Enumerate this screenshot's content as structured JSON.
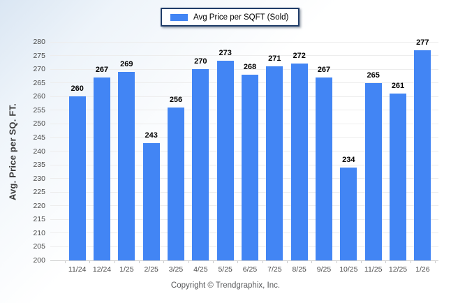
{
  "legend": {
    "label": "Avg Price per SQFT (Sold)",
    "swatch_icon": "blue-square-swatch"
  },
  "y_axis_title": "Avg. Price per SQ. FT.",
  "footer": {
    "copyright": "Copyright © Trendgraphix, Inc."
  },
  "colors": {
    "bar": "#4285f4",
    "legend_border": "#1f3c68",
    "gridline": "#ededed",
    "axis_line": "#cccccc",
    "tick_text": "#4a4a4a",
    "background_tint": "#dae6f3"
  },
  "chart_data": {
    "type": "bar",
    "title": "",
    "xlabel": "",
    "ylabel": "Avg. Price per SQ. FT.",
    "categories": [
      "11/24",
      "12/24",
      "1/25",
      "2/25",
      "3/25",
      "4/25",
      "5/25",
      "6/25",
      "7/25",
      "8/25",
      "9/25",
      "10/25",
      "11/25",
      "12/25",
      "1/26"
    ],
    "values": [
      260,
      267,
      269,
      243,
      256,
      270,
      273,
      268,
      271,
      272,
      267,
      234,
      265,
      261,
      277
    ],
    "series_name": "Avg Price per SQFT (Sold)",
    "ylim": [
      200,
      280
    ],
    "ytick_step": 5,
    "grid": true,
    "data_labels": true,
    "legend_position": "top-center"
  }
}
